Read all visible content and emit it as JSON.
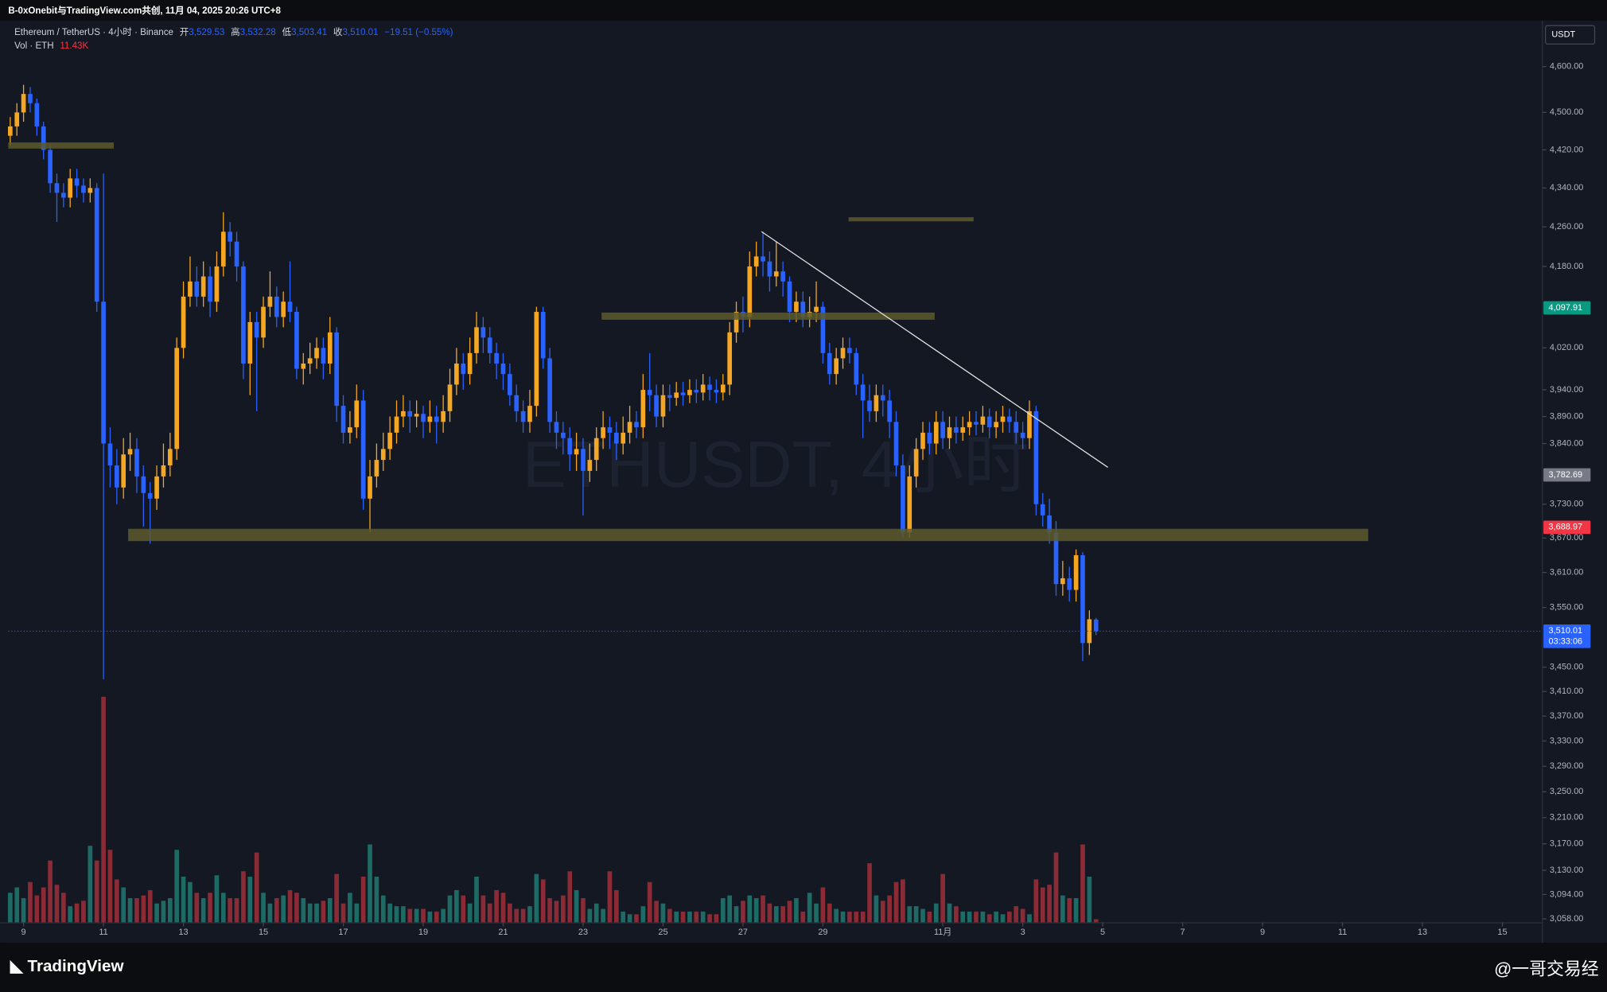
{
  "header": {
    "author": "B-0xOnebit与TradingView.com共创, 11月 04, 2025 20:26 UTC+8",
    "symbol": "Ethereum / TetherUS · 4小时 · Binance",
    "ohlc": [
      {
        "label": "开",
        "value": "3,529.53"
      },
      {
        "label": "高",
        "value": "3,532.28"
      },
      {
        "label": "低",
        "value": "3,503.41"
      },
      {
        "label": "收",
        "value": "3,510.01"
      }
    ],
    "change": "−19.51 (−0.55%)",
    "currency": "USDT",
    "watermark": "ETHUSDT, 4小时"
  },
  "footer": {
    "brand": "TradingView",
    "credit": "@一哥交易经"
  },
  "chart_data": {
    "type": "candlestick",
    "log_scale": true,
    "grid": false,
    "up_color": "#f5a623",
    "down_color": "#2962ff",
    "volume_up_color": "#1d6b64",
    "volume_down_color": "#8a2b36",
    "categories": [
      null,
      null,
      null,
      null,
      null,
      null,
      null,
      null,
      null,
      null,
      null,
      null,
      null,
      null,
      null,
      null,
      null,
      null,
      null,
      null,
      null,
      null,
      null,
      null,
      null,
      null,
      null,
      null,
      null,
      null,
      null,
      null,
      null,
      null,
      null,
      null,
      null,
      null,
      null,
      null,
      null,
      null,
      null,
      null,
      null,
      null,
      null,
      null,
      null,
      null,
      null,
      null,
      null,
      null,
      null,
      null,
      null,
      null,
      null,
      null,
      null,
      null,
      null,
      null,
      null,
      null,
      null,
      null,
      null,
      null,
      null,
      null,
      null,
      null,
      null,
      null,
      null,
      null,
      null,
      null,
      null,
      null,
      null,
      null,
      null,
      null,
      null,
      null,
      null,
      null,
      null,
      null,
      null,
      null,
      null,
      null,
      null,
      null,
      null,
      null,
      null,
      null,
      null,
      null,
      null,
      null,
      null,
      null,
      null,
      null,
      null,
      null,
      null,
      null,
      null,
      null,
      null,
      null,
      null,
      null,
      null,
      null,
      null,
      null,
      null,
      null,
      null,
      null,
      null,
      null,
      null,
      null,
      null,
      null,
      null,
      null,
      null,
      null,
      null,
      null,
      null,
      null,
      null,
      null,
      null,
      null,
      null,
      null,
      null,
      null,
      null,
      null,
      null,
      null,
      null,
      null,
      null,
      null,
      null,
      null,
      null,
      null,
      null,
      null
    ],
    "open": [
      4450,
      4470,
      4500,
      4540,
      4520,
      4470,
      4420,
      4350,
      4330,
      4320,
      4360,
      4345,
      4330,
      4340,
      4110,
      3840,
      3800,
      3760,
      3820,
      3830,
      3780,
      3750,
      3740,
      3780,
      3800,
      3830,
      4020,
      4120,
      4150,
      4120,
      4160,
      4110,
      4180,
      4250,
      4230,
      4180,
      3990,
      4070,
      4040,
      4100,
      4120,
      4080,
      4110,
      4090,
      3980,
      3990,
      4000,
      4020,
      3990,
      4050,
      3910,
      3860,
      3870,
      3920,
      3740,
      3780,
      3810,
      3830,
      3860,
      3890,
      3900,
      3890,
      3895,
      3880,
      3890,
      3880,
      3900,
      3950,
      3990,
      3970,
      4010,
      4060,
      4040,
      4010,
      3990,
      3970,
      3930,
      3900,
      3880,
      3910,
      4090,
      4000,
      3880,
      3860,
      3850,
      3820,
      3830,
      3790,
      3810,
      3850,
      3870,
      3860,
      3840,
      3860,
      3880,
      3870,
      3940,
      3930,
      3890,
      3930,
      3925,
      3935,
      3930,
      3940,
      3935,
      3950,
      3940,
      3935,
      3950,
      4050,
      4090,
      4080,
      4180,
      4200,
      4190,
      4160,
      4170,
      4150,
      4090,
      4110,
      4080,
      4090,
      4100,
      4010,
      3970,
      4000,
      4020,
      4010,
      3950,
      3920,
      3900,
      3930,
      3920,
      3880,
      3800,
      3680,
      3780,
      3830,
      3860,
      3840,
      3880,
      3850,
      3870,
      3860,
      3870,
      3880,
      3875,
      3890,
      3870,
      3880,
      3890,
      3880,
      3860,
      3850,
      3900,
      3730,
      3710,
      3680,
      3590,
      3600,
      3580,
      3640,
      3490,
      3529.53
    ],
    "high": [
      4490,
      4520,
      4560,
      4555,
      4530,
      4480,
      4430,
      4370,
      4350,
      4380,
      4380,
      4360,
      4360,
      4350,
      4370,
      3870,
      3830,
      3850,
      3860,
      3850,
      3800,
      3770,
      3800,
      3840,
      3860,
      4040,
      4150,
      4200,
      4180,
      4190,
      4180,
      4210,
      4290,
      4270,
      4250,
      4190,
      4090,
      4090,
      4120,
      4170,
      4140,
      4130,
      4190,
      4100,
      4010,
      4030,
      4040,
      4040,
      4080,
      4060,
      3930,
      3900,
      3950,
      3940,
      3810,
      3840,
      3860,
      3890,
      3920,
      3930,
      3920,
      3920,
      3910,
      3920,
      3910,
      3930,
      3980,
      4020,
      4010,
      4040,
      4090,
      4080,
      4060,
      4030,
      4010,
      3990,
      3950,
      3920,
      3940,
      4100,
      4100,
      4020,
      3900,
      3880,
      3870,
      3860,
      3850,
      3840,
      3870,
      3900,
      3890,
      3880,
      3890,
      3910,
      3900,
      3970,
      4010,
      3950,
      3950,
      3950,
      3955,
      3955,
      3960,
      3960,
      3970,
      3965,
      3960,
      3970,
      4070,
      4110,
      4120,
      4210,
      4230,
      4250,
      4210,
      4230,
      4190,
      4160,
      4130,
      4130,
      4120,
      4150,
      4110,
      4030,
      4020,
      4040,
      4040,
      4020,
      3970,
      3950,
      3950,
      3950,
      3940,
      3900,
      3820,
      3800,
      3850,
      3880,
      3880,
      3900,
      3900,
      3890,
      3890,
      3890,
      3900,
      3900,
      3910,
      3905,
      3900,
      3910,
      3905,
      3900,
      3880,
      3920,
      3910,
      3750,
      3740,
      3700,
      3630,
      3620,
      3650,
      3645,
      3545,
      3532.28
    ],
    "low": [
      4430,
      4450,
      4480,
      4500,
      4450,
      4400,
      4330,
      4270,
      4300,
      4300,
      4320,
      4310,
      4310,
      4090,
      3430,
      3760,
      3730,
      3740,
      3790,
      3750,
      3690,
      3660,
      3720,
      3760,
      3780,
      3810,
      4000,
      4100,
      4100,
      4100,
      4080,
      4090,
      4160,
      4200,
      4150,
      3960,
      3930,
      3900,
      4020,
      4080,
      4060,
      4060,
      4070,
      3960,
      3950,
      3970,
      3980,
      3960,
      3970,
      3880,
      3840,
      3840,
      3850,
      3720,
      3680,
      3760,
      3790,
      3810,
      3840,
      3870,
      3860,
      3870,
      3850,
      3860,
      3840,
      3860,
      3880,
      3930,
      3940,
      3950,
      3990,
      4010,
      3990,
      3960,
      3940,
      3910,
      3880,
      3860,
      3860,
      3890,
      3980,
      3860,
      3830,
      3820,
      3790,
      3790,
      3710,
      3770,
      3790,
      3830,
      3830,
      3810,
      3820,
      3840,
      3850,
      3850,
      3900,
      3870,
      3870,
      3900,
      3910,
      3910,
      3915,
      3915,
      3920,
      3920,
      3915,
      3920,
      3930,
      4030,
      4050,
      4060,
      4160,
      4160,
      4130,
      4140,
      4120,
      4070,
      4070,
      4060,
      4060,
      4070,
      3990,
      3950,
      3950,
      3980,
      3990,
      3930,
      3850,
      3880,
      3880,
      3890,
      3850,
      3780,
      3670,
      3670,
      3760,
      3810,
      3820,
      3820,
      3830,
      3830,
      3840,
      3845,
      3855,
      3855,
      3860,
      3850,
      3850,
      3860,
      3860,
      3840,
      3830,
      3830,
      3710,
      3690,
      3660,
      3570,
      3570,
      3560,
      3560,
      3460,
      3470,
      3503.41
    ],
    "close": [
      4470,
      4500,
      4540,
      4520,
      4470,
      4420,
      4350,
      4330,
      4320,
      4360,
      4345,
      4330,
      4340,
      4110,
      3840,
      3800,
      3760,
      3820,
      3830,
      3780,
      3750,
      3740,
      3780,
      3800,
      3830,
      4020,
      4120,
      4150,
      4120,
      4160,
      4110,
      4180,
      4250,
      4230,
      4180,
      3990,
      4070,
      4040,
      4100,
      4120,
      4080,
      4110,
      4090,
      3980,
      3990,
      4000,
      4020,
      3990,
      4050,
      3910,
      3860,
      3870,
      3920,
      3740,
      3780,
      3810,
      3830,
      3860,
      3890,
      3900,
      3890,
      3895,
      3880,
      3890,
      3880,
      3900,
      3950,
      3990,
      3970,
      4010,
      4060,
      4040,
      4010,
      3990,
      3970,
      3930,
      3900,
      3880,
      3910,
      4090,
      4000,
      3880,
      3860,
      3850,
      3820,
      3830,
      3790,
      3810,
      3850,
      3870,
      3860,
      3840,
      3860,
      3880,
      3870,
      3940,
      3930,
      3890,
      3930,
      3925,
      3935,
      3930,
      3940,
      3935,
      3950,
      3940,
      3935,
      3950,
      4050,
      4090,
      4080,
      4180,
      4200,
      4190,
      4160,
      4170,
      4150,
      4090,
      4110,
      4080,
      4090,
      4100,
      4010,
      3970,
      4000,
      4020,
      4010,
      3950,
      3920,
      3900,
      3930,
      3920,
      3880,
      3800,
      3680,
      3780,
      3830,
      3860,
      3840,
      3880,
      3850,
      3870,
      3860,
      3870,
      3880,
      3875,
      3890,
      3870,
      3880,
      3890,
      3880,
      3860,
      3850,
      3900,
      3730,
      3710,
      3680,
      3590,
      3600,
      3580,
      3640,
      3490,
      3530,
      3510.01
    ],
    "volume": {
      "name": "Vol · ETH",
      "last_label": "11.43K",
      "values": [
        110,
        130,
        90,
        150,
        100,
        130,
        230,
        140,
        110,
        60,
        70,
        80,
        285,
        230,
        840,
        270,
        160,
        130,
        90,
        90,
        100,
        120,
        70,
        80,
        90,
        270,
        170,
        150,
        110,
        90,
        110,
        175,
        110,
        90,
        90,
        190,
        170,
        260,
        110,
        70,
        90,
        100,
        120,
        110,
        90,
        70,
        70,
        80,
        90,
        180,
        70,
        110,
        70,
        170,
        290,
        170,
        100,
        70,
        60,
        60,
        50,
        50,
        50,
        40,
        40,
        50,
        100,
        120,
        100,
        70,
        170,
        100,
        70,
        120,
        110,
        70,
        50,
        50,
        60,
        180,
        160,
        90,
        80,
        100,
        190,
        120,
        90,
        50,
        70,
        50,
        190,
        120,
        40,
        30,
        30,
        60,
        150,
        80,
        70,
        50,
        40,
        40,
        40,
        40,
        40,
        30,
        30,
        90,
        100,
        60,
        80,
        100,
        90,
        100,
        70,
        60,
        60,
        80,
        90,
        40,
        110,
        70,
        130,
        70,
        50,
        40,
        40,
        40,
        40,
        220,
        100,
        80,
        100,
        150,
        160,
        60,
        60,
        50,
        40,
        70,
        180,
        70,
        60,
        40,
        40,
        40,
        40,
        30,
        40,
        30,
        40,
        60,
        50,
        30,
        160,
        130,
        140,
        260,
        100,
        90,
        90,
        290,
        170,
        11.43
      ]
    },
    "volume_ylim": [
      0,
      1000
    ],
    "xlim": [
      -0.3,
      229.7
    ],
    "xticks": [
      {
        "value": 2,
        "label": "9"
      },
      {
        "value": 14,
        "label": "11"
      },
      {
        "value": 26,
        "label": "13"
      },
      {
        "value": 38,
        "label": "15"
      },
      {
        "value": 50,
        "label": "17"
      },
      {
        "value": 62,
        "label": "19"
      },
      {
        "value": 74,
        "label": "21"
      },
      {
        "value": 86,
        "label": "23"
      },
      {
        "value": 98,
        "label": "25"
      },
      {
        "value": 110,
        "label": "27"
      },
      {
        "value": 122,
        "label": "29"
      },
      {
        "value": 140,
        "label": "11月"
      },
      {
        "value": 152,
        "label": "3"
      },
      {
        "value": 164,
        "label": "5"
      },
      {
        "value": 176,
        "label": "7"
      },
      {
        "value": 188,
        "label": "9"
      },
      {
        "value": 200,
        "label": "11"
      },
      {
        "value": 212,
        "label": "13"
      },
      {
        "value": 224,
        "label": "15"
      }
    ],
    "ylim": [
      3053,
      4698
    ],
    "yticks": [
      {
        "value": 4600,
        "label": "4,600.00"
      },
      {
        "value": 4500,
        "label": "4,500.00"
      },
      {
        "value": 4420,
        "label": "4,420.00"
      },
      {
        "value": 4340,
        "label": "4,340.00"
      },
      {
        "value": 4260,
        "label": "4,260.00"
      },
      {
        "value": 4180,
        "label": "4,180.00"
      },
      {
        "value": 4020,
        "label": "4,020.00"
      },
      {
        "value": 3940,
        "label": "3,940.00"
      },
      {
        "value": 3890,
        "label": "3,890.00"
      },
      {
        "value": 3840,
        "label": "3,840.00"
      },
      {
        "value": 3730,
        "label": "3,730.00"
      },
      {
        "value": 3670,
        "label": "3,670.00"
      },
      {
        "value": 3610,
        "label": "3,610.00"
      },
      {
        "value": 3550,
        "label": "3,550.00"
      },
      {
        "value": 3450,
        "label": "3,450.00"
      },
      {
        "value": 3410,
        "label": "3,410.00"
      },
      {
        "value": 3370,
        "label": "3,370.00"
      },
      {
        "value": 3330,
        "label": "3,330.00"
      },
      {
        "value": 3290,
        "label": "3,290.00"
      },
      {
        "value": 3250,
        "label": "3,250.00"
      },
      {
        "value": 3210,
        "label": "3,210.00"
      },
      {
        "value": 3170,
        "label": "3,170.00"
      },
      {
        "value": 3130,
        "label": "3,130.00"
      },
      {
        "value": 3094,
        "label": "3,094.00"
      },
      {
        "value": 3058,
        "label": "3,058.00"
      }
    ],
    "price_labels": [
      {
        "value": 4097.91,
        "label": "4,097.91",
        "color": "#089981"
      },
      {
        "value": 3782.69,
        "label": "3,782.69",
        "color": "#787b86"
      },
      {
        "value": 3688.97,
        "label": "3,688.97",
        "color": "#f23645"
      },
      {
        "value": 3510.01,
        "label": "3,510.01",
        "color": "#2962ff"
      }
    ],
    "countdown": "03:33:06"
  }
}
